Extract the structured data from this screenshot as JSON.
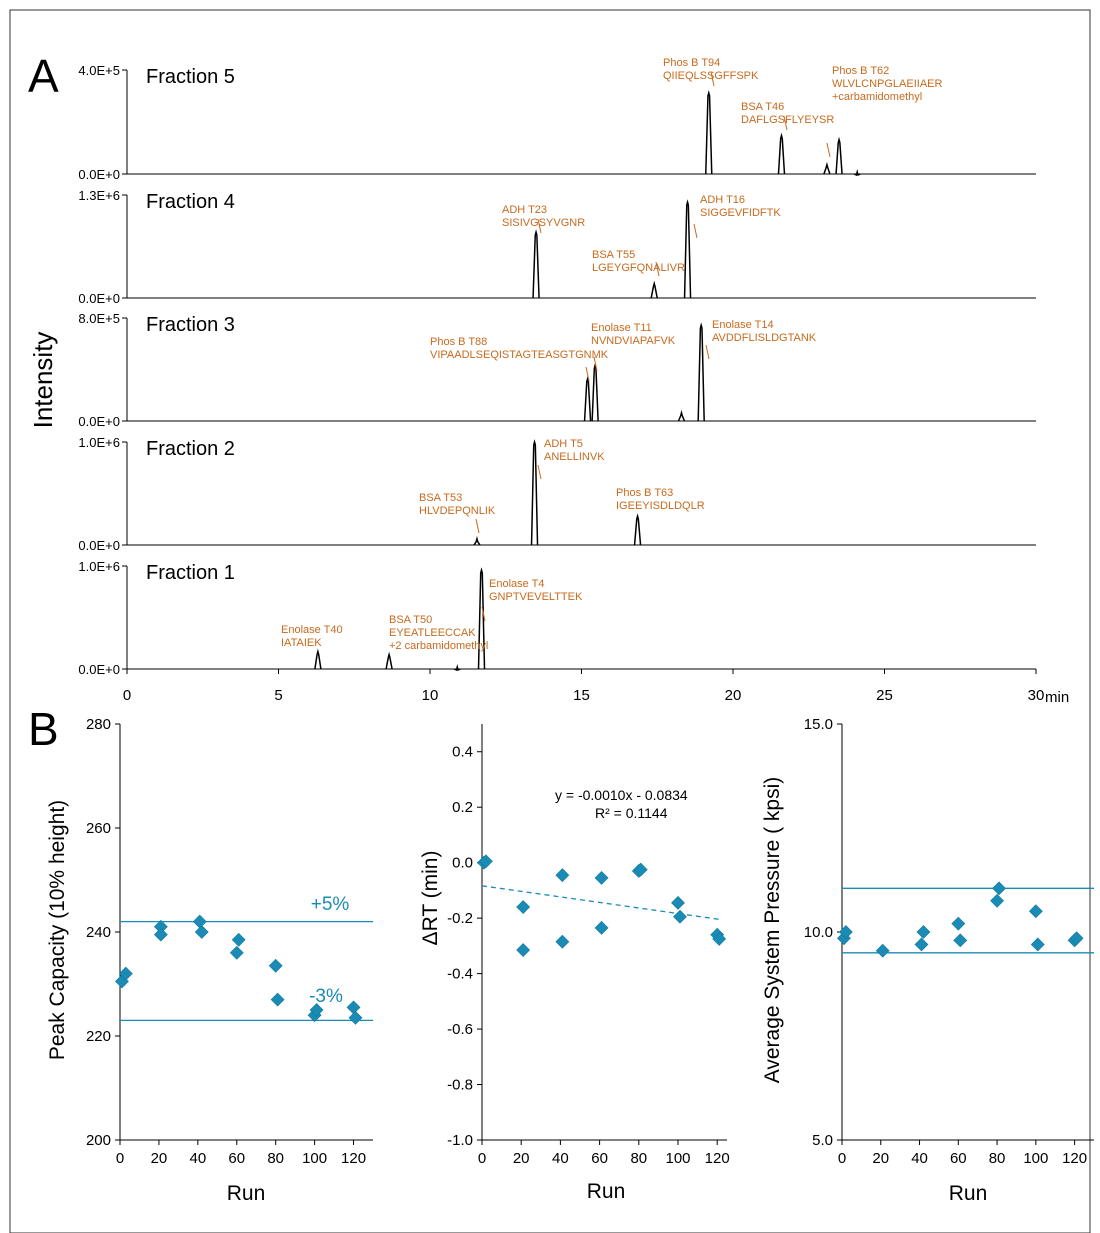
{
  "panel_labels": {
    "a": "A",
    "b": "B"
  },
  "chart_data": [
    {
      "type": "line",
      "title": "",
      "ylabel": "Intensity",
      "xlabel": "",
      "x_unit": "min",
      "xlim": [
        0,
        30
      ],
      "x_ticks": [
        "0",
        "5",
        "10",
        "15",
        "20",
        "25",
        "30"
      ],
      "peak_color": "#000000",
      "annotation_color": "#c86a1e",
      "series": [
        {
          "name": "Fraction 5",
          "ymax_label": "4.0E+5",
          "ymin_label": "0.0E+0",
          "ymax": 400000,
          "peaks": [
            {
              "x": 19.2,
              "y": 0.78
            },
            {
              "x": 21.6,
              "y": 0.37
            },
            {
              "x": 23.1,
              "y": 0.09
            },
            {
              "x": 23.5,
              "y": 0.33
            },
            {
              "x": 24.1,
              "y": 0.02
            }
          ],
          "annotations": [
            {
              "lines": [
                "Phos B T94",
                "QIIEQLSSGFFSPK"
              ],
              "peak_x": 19.2
            },
            {
              "lines": [
                "BSA T46",
                "DAFLGSFLYEYSR"
              ],
              "peak_x": 21.6
            },
            {
              "lines": [
                "Phos B T62",
                "WLVLCNPGLAEIIAER",
                "+carbamidomethyl"
              ],
              "peak_x": 23.1
            }
          ]
        },
        {
          "name": "Fraction 4",
          "ymax_label": "1.3E+6",
          "ymin_label": "0.0E+0",
          "ymax": 1300000,
          "peaks": [
            {
              "x": 13.5,
              "y": 0.64
            },
            {
              "x": 17.4,
              "y": 0.14
            },
            {
              "x": 18.5,
              "y": 0.93
            }
          ],
          "annotations": [
            {
              "lines": [
                "ADH T23",
                "SISIVGSYVGNR"
              ],
              "peak_x": 13.5
            },
            {
              "lines": [
                "BSA T55",
                "LGEYGFQNALIVR"
              ],
              "peak_x": 17.4
            },
            {
              "lines": [
                "ADH T16",
                "SIGGEVFIDFTK"
              ],
              "peak_x": 18.5
            }
          ]
        },
        {
          "name": "Fraction 3",
          "ymax_label": "8.0E+5",
          "ymin_label": "0.0E+0",
          "ymax": 800000,
          "peaks": [
            {
              "x": 15.2,
              "y": 0.41
            },
            {
              "x": 15.45,
              "y": 0.54
            },
            {
              "x": 18.3,
              "y": 0.08
            },
            {
              "x": 18.95,
              "y": 0.93
            }
          ],
          "annotations": [
            {
              "lines": [
                "Phos B T88",
                "VIPAADLSEQISTAGTEASGTGNMK"
              ],
              "peak_x": 15.2
            },
            {
              "lines": [
                "Enolase T11",
                "NVNDVIAPAFVK"
              ],
              "peak_x": 15.45
            },
            {
              "lines": [
                "Enolase T14",
                "AVDDFLISLDGTANK"
              ],
              "peak_x": 18.95
            }
          ]
        },
        {
          "name": "Fraction 2",
          "ymax_label": "1.0E+6",
          "ymin_label": "0.0E+0",
          "ymax": 1000000,
          "peaks": [
            {
              "x": 11.55,
              "y": 0.06
            },
            {
              "x": 13.45,
              "y": 1.0
            },
            {
              "x": 16.85,
              "y": 0.28
            }
          ],
          "annotations": [
            {
              "lines": [
                "BSA T53",
                "HLVDEPQNLIK"
              ],
              "peak_x": 11.55
            },
            {
              "lines": [
                "ADH T5",
                "ANELLINVK"
              ],
              "peak_x": 13.45
            },
            {
              "lines": [
                "Phos B T63",
                "IGEEYISDLDQLR"
              ],
              "peak_x": 16.85
            }
          ]
        },
        {
          "name": "Fraction 1",
          "ymax_label": "1.0E+6",
          "ymin_label": "0.0E+0",
          "ymax": 1000000,
          "peaks": [
            {
              "x": 6.3,
              "y": 0.17
            },
            {
              "x": 8.65,
              "y": 0.14
            },
            {
              "x": 10.9,
              "y": 0.02
            },
            {
              "x": 11.7,
              "y": 0.96
            }
          ],
          "annotations": [
            {
              "lines": [
                "Enolase T40",
                "IATAIEK"
              ],
              "peak_x": 6.3
            },
            {
              "lines": [
                "BSA T50",
                "EYEATLEECCAK",
                "+2 carbamidomethyl"
              ],
              "peak_x": 8.65
            },
            {
              "lines": [
                "Enolase T4",
                "GNPTVEVELTTEK"
              ],
              "peak_x": 11.7
            }
          ]
        }
      ]
    },
    {
      "type": "scatter",
      "title": "",
      "xlabel": "Run",
      "ylabel": "Peak Capacity (10% height)",
      "xlim": [
        0,
        130
      ],
      "ylim": [
        200,
        280
      ],
      "x_ticks": [
        0,
        20,
        40,
        60,
        80,
        100,
        120
      ],
      "y_ticks": [
        200,
        220,
        240,
        260,
        280
      ],
      "marker_color": "#1a8bb5",
      "points": [
        [
          1,
          230.5
        ],
        [
          3,
          232
        ],
        [
          21,
          241
        ],
        [
          21,
          239.5
        ],
        [
          41,
          242
        ],
        [
          42,
          240
        ],
        [
          60,
          236
        ],
        [
          61,
          238.5
        ],
        [
          80,
          233.5
        ],
        [
          81,
          227
        ],
        [
          100,
          224
        ],
        [
          101,
          225
        ],
        [
          120,
          225.5
        ],
        [
          121,
          223.5
        ]
      ],
      "hlines": [
        {
          "y": 242,
          "label": "+5%"
        },
        {
          "y": 223,
          "label": "-3%"
        }
      ]
    },
    {
      "type": "scatter",
      "title": "",
      "xlabel": "Run",
      "ylabel": "ΔRT (min)",
      "xlim": [
        0,
        125
      ],
      "ylim": [
        -1.0,
        0.5
      ],
      "x_ticks": [
        0,
        20,
        40,
        60,
        80,
        100,
        120
      ],
      "y_ticks": [
        "-1.0",
        "-0.8",
        "-0.6",
        "-0.4",
        "-0.2",
        "0.0",
        "0.2",
        "0.4"
      ],
      "marker_color": "#1a8bb5",
      "points": [
        [
          1,
          0.0
        ],
        [
          2,
          0.005
        ],
        [
          21,
          -0.16
        ],
        [
          21,
          -0.315
        ],
        [
          41,
          -0.045
        ],
        [
          41,
          -0.285
        ],
        [
          61,
          -0.055
        ],
        [
          61,
          -0.235
        ],
        [
          80,
          -0.03
        ],
        [
          81,
          -0.025
        ],
        [
          100,
          -0.145
        ],
        [
          101,
          -0.195
        ],
        [
          120,
          -0.26
        ],
        [
          121,
          -0.275
        ]
      ],
      "trendline": {
        "slope": -0.001,
        "intercept": -0.0834,
        "x_range": [
          0,
          122
        ]
      },
      "equation": "y =  -0.0010x - 0.0834",
      "r_squared": "R² = 0.1144"
    },
    {
      "type": "scatter",
      "title": "",
      "xlabel": "Run",
      "ylabel": "Average System Pressure (    kpsi)",
      "xlim": [
        0,
        130
      ],
      "ylim": [
        5.0,
        15.0
      ],
      "x_ticks": [
        0,
        20,
        40,
        60,
        80,
        100,
        120
      ],
      "y_ticks": [
        "5.0",
        "10.0",
        "15.0"
      ],
      "marker_color": "#1a8bb5",
      "points": [
        [
          1,
          9.85
        ],
        [
          2,
          10.0
        ],
        [
          21,
          9.55
        ],
        [
          41,
          9.7
        ],
        [
          42,
          10.0
        ],
        [
          60,
          10.2
        ],
        [
          61,
          9.8
        ],
        [
          80,
          10.75
        ],
        [
          81,
          11.05
        ],
        [
          100,
          10.5
        ],
        [
          101,
          9.7
        ],
        [
          120,
          9.8
        ],
        [
          121,
          9.85
        ]
      ],
      "hlines": [
        {
          "y": 11.05
        },
        {
          "y": 9.5
        }
      ]
    }
  ]
}
